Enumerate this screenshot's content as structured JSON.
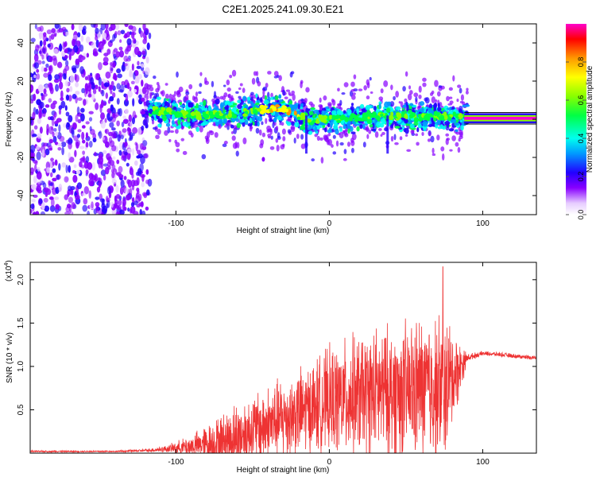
{
  "title": "C2E1.2025.241.09.30.E21",
  "colors": {
    "snr_line": "#ee3333",
    "frame": "#000000"
  },
  "chart_data": [
    {
      "type": "heatmap",
      "name": "spectrogram",
      "xlabel": "Height of straight line (km)",
      "ylabel": "Frequency (Hz)",
      "xlim": [
        -195,
        135
      ],
      "ylim": [
        -50,
        50
      ],
      "xticks": [
        -100,
        0,
        100
      ],
      "yticks": [
        -40,
        -20,
        0,
        20,
        40
      ],
      "colorbar": {
        "label": "Normalized spectral amplitude",
        "range": [
          0,
          1
        ],
        "ticks": [
          "0.0",
          "0.2",
          "0.4",
          "0.6",
          "0.8"
        ],
        "tick_values": [
          0.0,
          0.2,
          0.4,
          0.6,
          0.8
        ]
      },
      "regions": [
        {
          "kind": "noise",
          "x_range": [
            -195,
            -117
          ],
          "f_range": [
            -50,
            50
          ],
          "amplitude": 0.1
        },
        {
          "kind": "signal",
          "x_range": [
            -117,
            90
          ],
          "amplitude_peak": 0.6
        },
        {
          "kind": "tone",
          "x_range": [
            88,
            135
          ],
          "center_hz": 0.5,
          "amplitude": 0.95
        }
      ],
      "ridge_frequency": [
        {
          "x": -115,
          "f": 5
        },
        {
          "x": -100,
          "f": 3
        },
        {
          "x": -80,
          "f": 2
        },
        {
          "x": -60,
          "f": 3
        },
        {
          "x": -45,
          "f": 5
        },
        {
          "x": -35,
          "f": 6
        },
        {
          "x": -25,
          "f": 4
        },
        {
          "x": -15,
          "f": 0
        },
        {
          "x": 0,
          "f": 0
        },
        {
          "x": 20,
          "f": 1
        },
        {
          "x": 40,
          "f": 2
        },
        {
          "x": 60,
          "f": 1
        },
        {
          "x": 75,
          "f": 2
        },
        {
          "x": 88,
          "f": 1
        }
      ]
    },
    {
      "type": "line",
      "name": "snr",
      "xlabel": "Height of straight line (km)",
      "ylabel": "SNR (10 * v/v)",
      "scale_label": "(x10",
      "scale_exponent": "4",
      "scale_close": ")",
      "xlim": [
        -195,
        135
      ],
      "ylim": [
        0,
        2.2
      ],
      "xticks": [
        -100,
        0,
        100
      ],
      "yticks": [
        "0.5",
        "1.0",
        "1.5",
        "2.0"
      ],
      "ytick_values": [
        0.5,
        1.0,
        1.5,
        2.0
      ],
      "envelope": {
        "x": [
          -195,
          -140,
          -120,
          -105,
          -90,
          -75,
          -60,
          -45,
          -30,
          -15,
          0,
          15,
          30,
          45,
          60,
          75,
          90,
          100,
          110,
          120,
          135
        ],
        "base": [
          0.02,
          0.02,
          0.03,
          0.05,
          0.08,
          0.12,
          0.2,
          0.3,
          0.4,
          0.5,
          0.6,
          0.65,
          0.7,
          0.7,
          0.75,
          0.75,
          1.1,
          1.15,
          1.14,
          1.12,
          1.1
        ],
        "spread": [
          0.01,
          0.01,
          0.02,
          0.05,
          0.15,
          0.3,
          0.45,
          0.5,
          0.55,
          0.6,
          0.7,
          0.8,
          0.85,
          0.9,
          0.95,
          1.0,
          0.05,
          0.03,
          0.03,
          0.03,
          0.03
        ]
      },
      "peak": {
        "x": 74,
        "y": 2.15
      }
    }
  ]
}
